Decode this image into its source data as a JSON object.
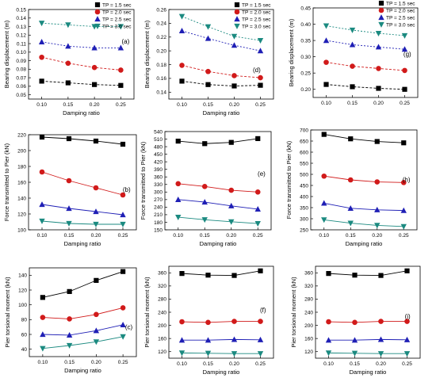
{
  "colors": {
    "TP = 1.5 sec": "#000000",
    "TP = 2.0 sec": "#d11a1a",
    "TP = 2.5 sec": "#1f1fb5",
    "TP = 3.0 sec": "#1b8a80"
  },
  "chart_data": [
    {
      "type": "line",
      "panel": "(a)",
      "xlabel": "Damping ratio",
      "ylabel": "Bearing displacement (m)",
      "xlim": [
        0.075,
        0.275
      ],
      "ylim": [
        0.045,
        0.15
      ],
      "xticks": [
        "0.10",
        "0.15",
        "0.20",
        "0.25"
      ],
      "yticks": [
        "0.05",
        "0.06",
        "0.07",
        "0.08",
        "0.09",
        "0.10",
        "0.11",
        "0.12",
        "0.13",
        "0.14",
        "0.15"
      ],
      "legend": "top-right",
      "x": [
        0.1,
        0.15,
        0.2,
        0.25
      ],
      "series": [
        {
          "name": "TP = 1.5 sec",
          "values": [
            0.066,
            0.064,
            0.062,
            0.061
          ]
        },
        {
          "name": "TP = 2.0 sec",
          "values": [
            0.094,
            0.087,
            0.082,
            0.079
          ]
        },
        {
          "name": "TP = 2.5 sec",
          "values": [
            0.112,
            0.107,
            0.105,
            0.105
          ]
        },
        {
          "name": "TP = 3.0 sec",
          "values": [
            0.134,
            0.132,
            0.13,
            0.13
          ]
        }
      ]
    },
    {
      "type": "line",
      "panel": "(d)",
      "xlabel": "Damping ratio",
      "ylabel": "Bearing displacement (m)",
      "xlim": [
        0.075,
        0.275
      ],
      "ylim": [
        0.13,
        0.26
      ],
      "xticks": [
        "0.10",
        "0.15",
        "0.20",
        "0.25"
      ],
      "yticks": [
        "0.14",
        "0.16",
        "0.18",
        "0.20",
        "0.22",
        "0.24",
        "0.26"
      ],
      "legend": "top-right",
      "x": [
        0.1,
        0.15,
        0.2,
        0.25
      ],
      "series": [
        {
          "name": "TP = 1.5 sec",
          "values": [
            0.156,
            0.151,
            0.149,
            0.15
          ]
        },
        {
          "name": "TP = 2.0 sec",
          "values": [
            0.179,
            0.17,
            0.164,
            0.161
          ]
        },
        {
          "name": "TP = 2.5 sec",
          "values": [
            0.229,
            0.218,
            0.208,
            0.2
          ]
        },
        {
          "name": "TP = 3.0 sec",
          "values": [
            0.25,
            0.235,
            0.221,
            0.215
          ]
        }
      ]
    },
    {
      "type": "line",
      "panel": "(g)",
      "xlabel": "",
      "ylabel": "Bearing displacement (m)",
      "xlim": [
        0.075,
        0.275
      ],
      "ylim": [
        0.175,
        0.45
      ],
      "xticks": [
        "0.10",
        "0.15",
        "0.20",
        "0.25"
      ],
      "yticks": [
        "0.20",
        "0.25",
        "0.30",
        "0.35",
        "0.40",
        "0.45"
      ],
      "legend": "top-right",
      "x": [
        0.1,
        0.15,
        0.2,
        0.25
      ],
      "series": [
        {
          "name": "TP = 1.5 sec",
          "values": [
            0.215,
            0.208,
            0.203,
            0.2
          ]
        },
        {
          "name": "TP = 2.0 sec",
          "values": [
            0.283,
            0.271,
            0.264,
            0.258
          ]
        },
        {
          "name": "TP = 2.5 sec",
          "values": [
            0.35,
            0.337,
            0.33,
            0.323
          ]
        },
        {
          "name": "TP = 3.0 sec",
          "values": [
            0.395,
            0.382,
            0.372,
            0.365
          ]
        }
      ]
    },
    {
      "type": "line",
      "panel": "(b)",
      "xlabel": "Damping ratio",
      "ylabel": "Force transmitted to Pier (kN)",
      "xlim": [
        0.075,
        0.275
      ],
      "ylim": [
        100,
        220
      ],
      "xticks": [
        "0.10",
        "0.15",
        "0.20",
        "0.25"
      ],
      "yticks": [
        "100",
        "120",
        "140",
        "160",
        "180",
        "200",
        "220"
      ],
      "x": [
        0.1,
        0.15,
        0.2,
        0.25
      ],
      "series": [
        {
          "name": "TP = 1.5 sec",
          "values": [
            217,
            215,
            212,
            208
          ]
        },
        {
          "name": "TP = 2.0 sec",
          "values": [
            173,
            162,
            153,
            144
          ]
        },
        {
          "name": "TP = 2.5 sec",
          "values": [
            132,
            127,
            123,
            119
          ]
        },
        {
          "name": "TP = 3.0 sec",
          "values": [
            111,
            108,
            107,
            107
          ]
        }
      ]
    },
    {
      "type": "line",
      "panel": "(e)",
      "xlabel": "Damping ratio",
      "ylabel": "Force transmitted to Pier (kN)",
      "xlim": [
        0.075,
        0.275
      ],
      "ylim": [
        150,
        540
      ],
      "xticks": [
        "0.10",
        "0.15",
        "0.20",
        "0.25"
      ],
      "yticks": [
        "150",
        "180",
        "210",
        "240",
        "270",
        "300",
        "330",
        "360",
        "390",
        "420",
        "450",
        "480",
        "510",
        "540"
      ],
      "x": [
        0.1,
        0.15,
        0.2,
        0.25
      ],
      "series": [
        {
          "name": "TP = 1.5 sec",
          "values": [
            502,
            492,
            497,
            512
          ]
        },
        {
          "name": "TP = 2.0 sec",
          "values": [
            333,
            322,
            307,
            300
          ]
        },
        {
          "name": "TP = 2.5 sec",
          "values": [
            270,
            260,
            245,
            232
          ]
        },
        {
          "name": "TP = 3.0 sec",
          "values": [
            200,
            190,
            182,
            175
          ]
        }
      ]
    },
    {
      "type": "line",
      "panel": "(h)",
      "xlabel": "Damping ratio",
      "ylabel": "Force transmitted to Pier (kN)",
      "xlim": [
        0.075,
        0.275
      ],
      "ylim": [
        250,
        700
      ],
      "xticks": [
        "0.10",
        "0.15",
        "0.20",
        "0.25"
      ],
      "yticks": [
        "250",
        "300",
        "350",
        "400",
        "450",
        "500",
        "550",
        "600",
        "650",
        "700"
      ],
      "x": [
        0.1,
        0.15,
        0.2,
        0.25
      ],
      "series": [
        {
          "name": "TP = 1.5 sec",
          "values": [
            680,
            660,
            648,
            642
          ]
        },
        {
          "name": "TP = 2.0 sec",
          "values": [
            492,
            475,
            466,
            463
          ]
        },
        {
          "name": "TP = 2.5 sec",
          "values": [
            370,
            347,
            340,
            337
          ]
        },
        {
          "name": "TP = 3.0 sec",
          "values": [
            295,
            280,
            270,
            265
          ]
        }
      ]
    },
    {
      "type": "line",
      "panel": "(c)",
      "xlabel": "Damping ratio",
      "ylabel": "Pier torsional moment (kN)",
      "xlim": [
        0.075,
        0.275
      ],
      "ylim": [
        30,
        150
      ],
      "xticks": [
        "0.10",
        "0.15",
        "0.20",
        "0.25"
      ],
      "yticks": [
        "40",
        "60",
        "80",
        "100",
        "120",
        "140"
      ],
      "x": [
        0.1,
        0.15,
        0.2,
        0.25
      ],
      "series": [
        {
          "name": "TP = 1.5 sec",
          "values": [
            110,
            118,
            133,
            145
          ]
        },
        {
          "name": "TP = 2.0 sec",
          "values": [
            83,
            81,
            87,
            96
          ]
        },
        {
          "name": "TP = 2.5 sec",
          "values": [
            60,
            59,
            65,
            73
          ]
        },
        {
          "name": "TP = 3.0 sec",
          "values": [
            41,
            45,
            50,
            57
          ]
        }
      ]
    },
    {
      "type": "line",
      "panel": "(f)",
      "xlabel": "Damping ratio",
      "ylabel": "Pier torsional moment (kN)",
      "xlim": [
        0.075,
        0.275
      ],
      "ylim": [
        100,
        380
      ],
      "xticks": [
        "0.10",
        "0.15",
        "0.20",
        "0.25"
      ],
      "yticks": [
        "120",
        "160",
        "200",
        "240",
        "280",
        "320",
        "360"
      ],
      "x": [
        0.1,
        0.15,
        0.2,
        0.25
      ],
      "series": [
        {
          "name": "TP = 1.5 sec",
          "values": [
            358,
            353,
            352,
            366
          ]
        },
        {
          "name": "TP = 2.0 sec",
          "values": [
            211,
            209,
            212,
            212
          ]
        },
        {
          "name": "TP = 2.5 sec",
          "values": [
            155,
            155,
            157,
            156
          ]
        },
        {
          "name": "TP = 3.0 sec",
          "values": [
            116,
            115,
            114,
            114
          ]
        }
      ]
    },
    {
      "type": "line",
      "panel": "(i)",
      "xlabel": "Damping ratio",
      "ylabel": "Pier torsional moment (kN)",
      "xlim": [
        0.075,
        0.275
      ],
      "ylim": [
        100,
        380
      ],
      "xticks": [
        "0.10",
        "0.15",
        "0.20",
        "0.25"
      ],
      "yticks": [
        "120",
        "160",
        "200",
        "240",
        "280",
        "320",
        "360"
      ],
      "x": [
        0.1,
        0.15,
        0.2,
        0.25
      ],
      "series": [
        {
          "name": "TP = 1.5 sec",
          "values": [
            358,
            353,
            352,
            366
          ]
        },
        {
          "name": "TP = 2.0 sec",
          "values": [
            211,
            209,
            212,
            212
          ]
        },
        {
          "name": "TP = 2.5 sec",
          "values": [
            155,
            155,
            157,
            156
          ]
        },
        {
          "name": "TP = 3.0 sec",
          "values": [
            116,
            115,
            114,
            114
          ]
        }
      ]
    }
  ]
}
